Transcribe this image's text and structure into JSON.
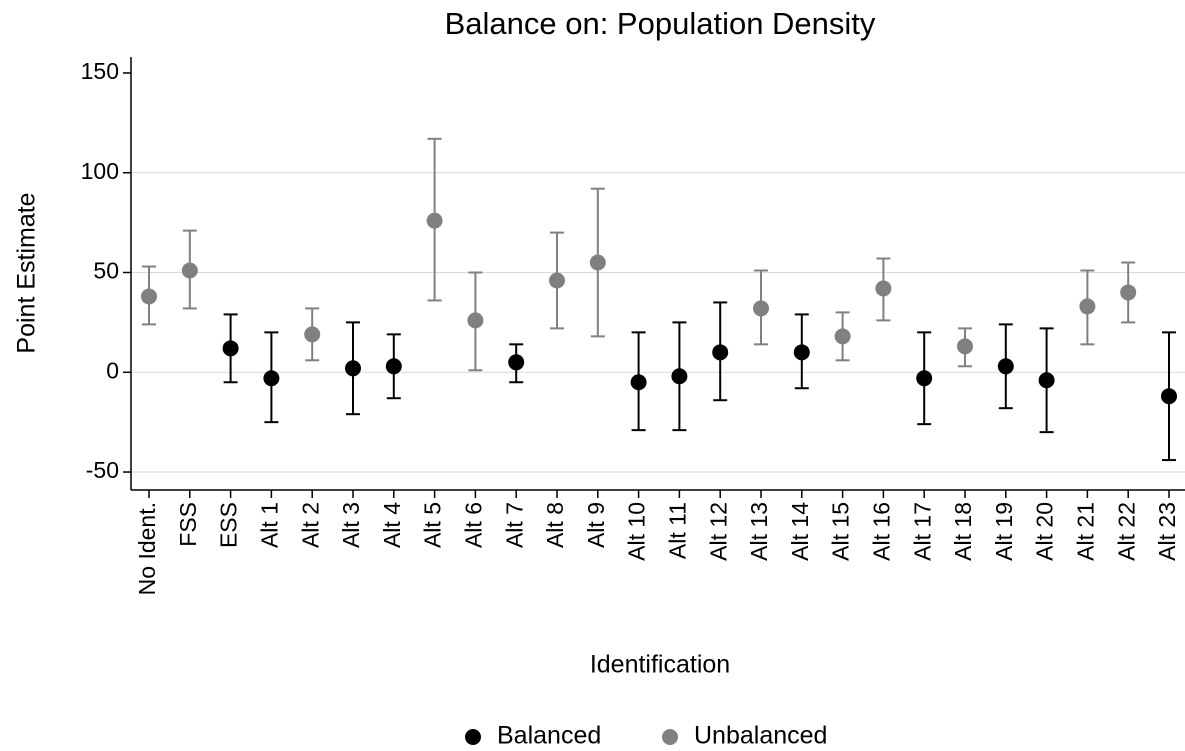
{
  "chart_data": {
    "type": "errorbar",
    "title": "Balance on: Population Density",
    "x_label": "Identification",
    "y_label": "Point Estimate",
    "categories": [
      "No Ident.",
      "FSS",
      "ESS",
      "Alt 1",
      "Alt 2",
      "Alt 3",
      "Alt 4",
      "Alt 5",
      "Alt 6",
      "Alt 7",
      "Alt 8",
      "Alt 9",
      "Alt 10",
      "Alt 11",
      "Alt 12",
      "Alt 13",
      "Alt 14",
      "Alt 15",
      "Alt 16",
      "Alt 17",
      "Alt 18",
      "Alt 19",
      "Alt 20",
      "Alt 21",
      "Alt 22",
      "Alt 23"
    ],
    "series": [
      {
        "name": "Balanced",
        "color": "#000000",
        "values": [
          null,
          null,
          12,
          -3,
          null,
          2,
          3,
          null,
          null,
          5,
          null,
          null,
          -5,
          -2,
          10,
          null,
          10,
          null,
          null,
          -3,
          null,
          3,
          -4,
          null,
          null,
          -12
        ],
        "lower": [
          null,
          null,
          -5,
          -25,
          null,
          -21,
          -13,
          null,
          null,
          -5,
          null,
          null,
          -29,
          -29,
          -14,
          null,
          -8,
          null,
          null,
          -26,
          null,
          -18,
          -30,
          null,
          null,
          -44
        ],
        "upper": [
          null,
          null,
          29,
          20,
          null,
          25,
          19,
          null,
          null,
          14,
          null,
          null,
          20,
          25,
          35,
          null,
          29,
          null,
          null,
          20,
          null,
          24,
          22,
          null,
          null,
          20
        ]
      },
      {
        "name": "Unbalanced",
        "color": "#808080",
        "values": [
          38,
          51,
          null,
          null,
          19,
          null,
          null,
          76,
          26,
          null,
          46,
          55,
          null,
          null,
          null,
          32,
          null,
          18,
          42,
          null,
          13,
          null,
          null,
          33,
          40,
          null
        ],
        "lower": [
          24,
          32,
          null,
          null,
          6,
          null,
          null,
          36,
          1,
          null,
          22,
          18,
          null,
          null,
          null,
          14,
          null,
          6,
          26,
          null,
          3,
          null,
          null,
          14,
          25,
          null
        ],
        "upper": [
          53,
          71,
          null,
          null,
          32,
          null,
          null,
          117,
          50,
          null,
          70,
          92,
          null,
          null,
          null,
          51,
          null,
          30,
          57,
          null,
          22,
          null,
          null,
          51,
          55,
          null
        ]
      }
    ],
    "ylim": [
      -59,
      158
    ],
    "yticks": [
      -50,
      0,
      50,
      100,
      150
    ],
    "grid": true
  }
}
